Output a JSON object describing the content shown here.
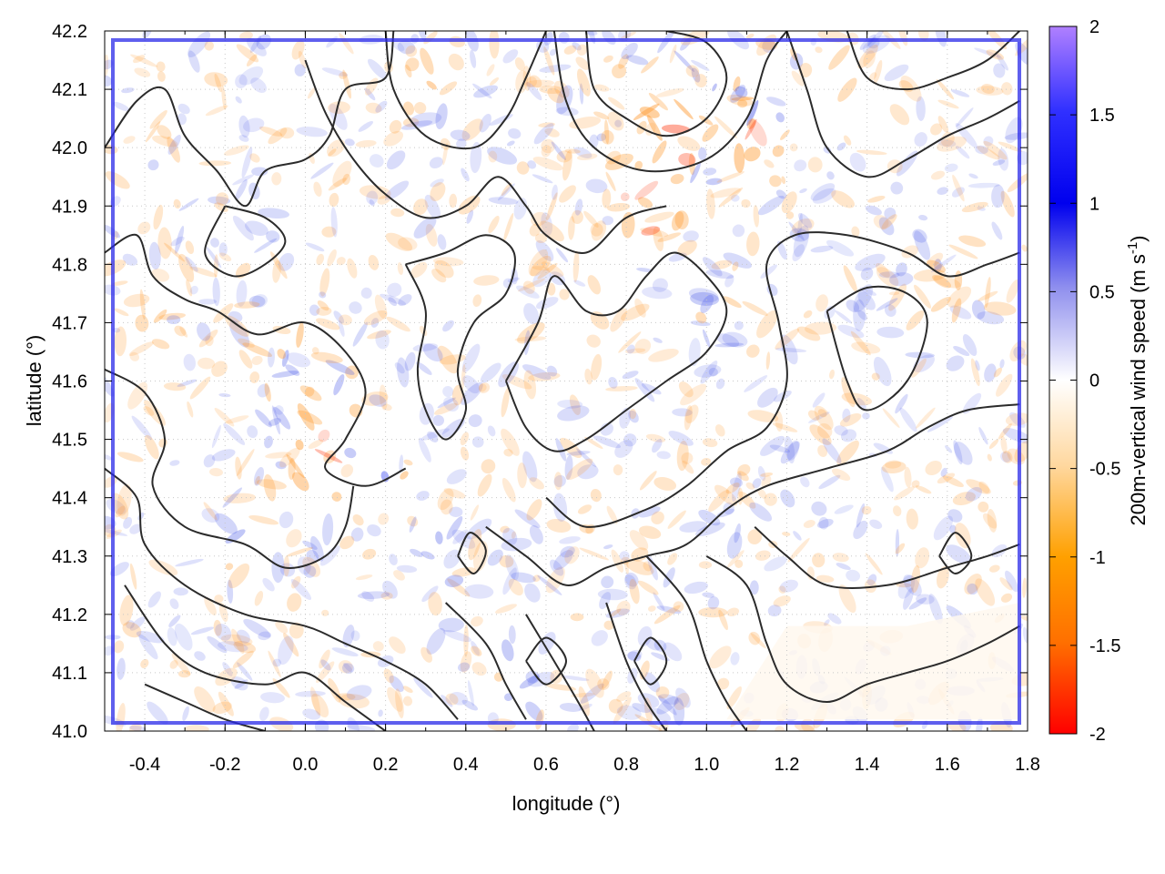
{
  "chart_data": {
    "type": "heatmap",
    "title": "",
    "xlabel": "longitude (°)",
    "ylabel": "latitude (°)",
    "xlim": [
      -0.5,
      1.8
    ],
    "ylim": [
      41.0,
      42.2
    ],
    "x_ticks": [
      -0.4,
      -0.2,
      0.0,
      0.2,
      0.4,
      0.6,
      0.8,
      1.0,
      1.2,
      1.4,
      1.6,
      1.8
    ],
    "x_tick_labels": [
      "-0.4",
      "-0.2",
      "0.0",
      "0.2",
      "0.4",
      "0.6",
      "0.8",
      "1.0",
      "1.2",
      "1.4",
      "1.6",
      "1.8"
    ],
    "y_ticks": [
      41.0,
      41.1,
      41.2,
      41.3,
      41.4,
      41.5,
      41.6,
      41.7,
      41.8,
      41.9,
      42.0,
      42.1,
      42.2
    ],
    "y_tick_labels": [
      "41.0",
      "41.1",
      "41.2",
      "41.3",
      "41.4",
      "41.5",
      "41.6",
      "41.7",
      "41.8",
      "41.9",
      "42.0",
      "42.1",
      "42.2"
    ],
    "grid": true,
    "colorbar": {
      "label": "200m-vertical wind speed (m s",
      "label_sup": "-1",
      "label_end": ")",
      "range": [
        -2,
        2
      ],
      "ticks": [
        2,
        1.5,
        1,
        0.5,
        0,
        -0.5,
        -1,
        -1.5,
        -2
      ],
      "tick_labels": [
        "2",
        "1.5",
        "1",
        "0.5",
        "0",
        "-0.5",
        "-1",
        "-1.5",
        "-2"
      ],
      "colors": [
        "#ff0000",
        "#ff8000",
        "#ffa500",
        "#ffe0b0",
        "#ffffff",
        "#b0b0f0",
        "#4a4ae8",
        "#0000ff",
        "#b080ff"
      ]
    },
    "positive_color": "#2030e0",
    "negative_color": "#ff8a1a",
    "contour_color": "#2b2b2b"
  }
}
